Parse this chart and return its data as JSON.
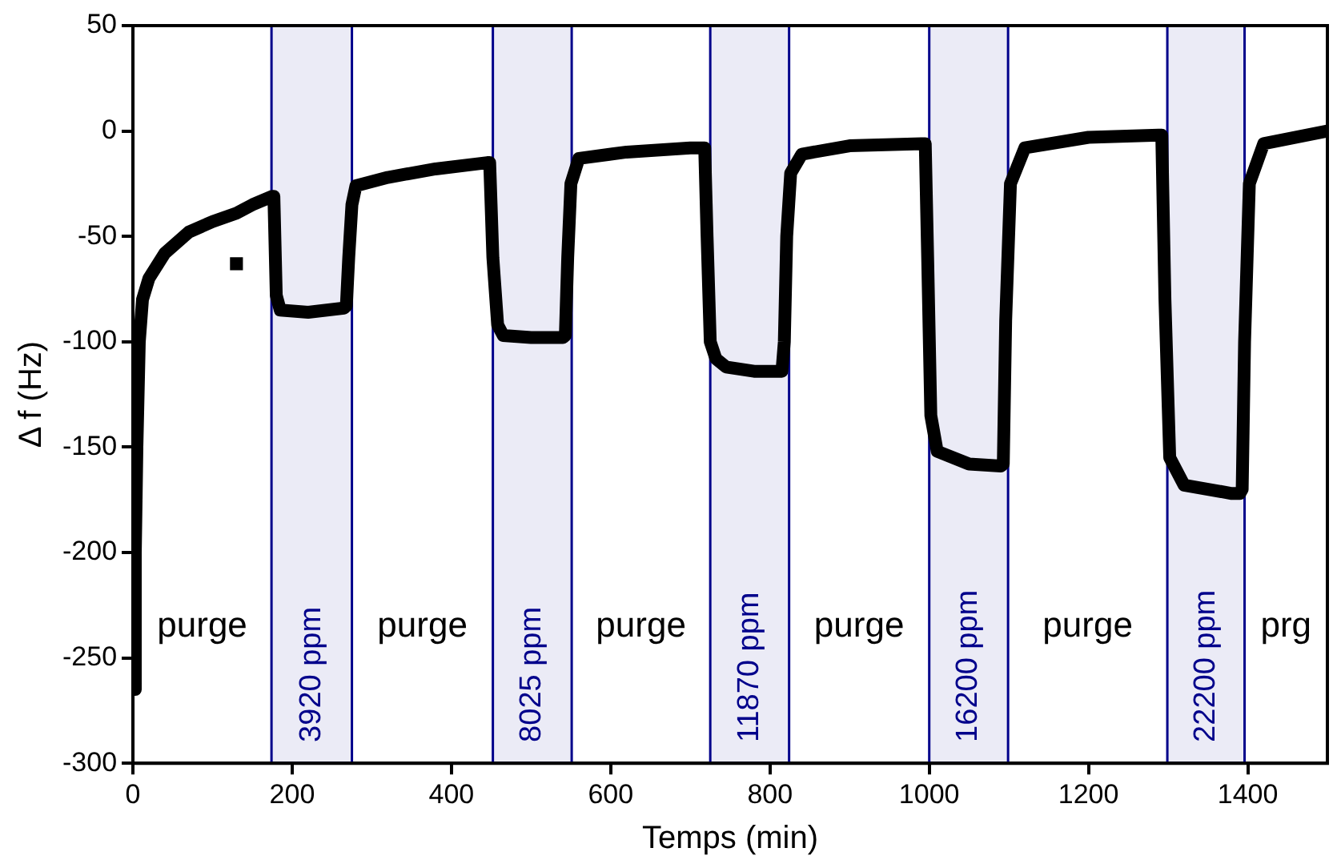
{
  "chart_data": {
    "type": "line",
    "xlabel": "Temps (min)",
    "ylabel": "Δ f (Hz)",
    "xlim": [
      0,
      1500
    ],
    "xticks": [
      0,
      200,
      400,
      600,
      800,
      1000,
      1200,
      1400
    ],
    "ylim": [
      -300,
      50
    ],
    "yticks": [
      -300,
      -250,
      -200,
      -150,
      -100,
      -50,
      0,
      50
    ],
    "grid": false,
    "legend": false,
    "series": [
      {
        "type": "line",
        "color": "#000000",
        "x": [
          2,
          3,
          5,
          8,
          12,
          20,
          40,
          70,
          100,
          130,
          150,
          175,
          177,
          180,
          185,
          220,
          265,
          268,
          271,
          275,
          280,
          320,
          380,
          445,
          448,
          452,
          458,
          465,
          500,
          540,
          543,
          546,
          550,
          560,
          620,
          700,
          718,
          721,
          725,
          732,
          745,
          780,
          815,
          818,
          821,
          826,
          840,
          900,
          990,
          995,
          998,
          1002,
          1010,
          1050,
          1090,
          1093,
          1096,
          1102,
          1120,
          1200,
          1288,
          1292,
          1296,
          1302,
          1320,
          1380,
          1390,
          1393,
          1396,
          1402,
          1420,
          1500
        ],
        "values": [
          -265,
          -200,
          -150,
          -100,
          -80,
          -70,
          -58,
          -48,
          -43,
          -39,
          -35,
          -31,
          -31,
          -78,
          -85,
          -86,
          -84,
          -83,
          -60,
          -35,
          -26,
          -22,
          -18,
          -15,
          -15,
          -60,
          -92,
          -97,
          -98,
          -98,
          -97,
          -60,
          -25,
          -13,
          -10,
          -8,
          -8,
          -50,
          -100,
          -108,
          -112,
          -114,
          -114,
          -100,
          -50,
          -20,
          -11,
          -7,
          -6,
          -6,
          -60,
          -135,
          -152,
          -158,
          -159,
          -158,
          -90,
          -25,
          -8,
          -3,
          -2,
          -2,
          -80,
          -155,
          -168,
          -172,
          -172,
          -170,
          -100,
          -25,
          -6,
          0
        ]
      },
      {
        "type": "scatter",
        "color": "#000000",
        "marker": "square",
        "x": [
          130
        ],
        "values": [
          -63
        ]
      }
    ],
    "bands": [
      {
        "axis": "x",
        "from": 174,
        "to": 275,
        "label": "3920 ppm",
        "color": "#00008b"
      },
      {
        "axis": "x",
        "from": 452,
        "to": 551,
        "label": "8025 ppm",
        "color": "#00008b"
      },
      {
        "axis": "x",
        "from": 725,
        "to": 824,
        "label": "11870 ppm",
        "color": "#00008b"
      },
      {
        "axis": "x",
        "from": 1000,
        "to": 1099,
        "label": "16200 ppm",
        "color": "#00008b"
      },
      {
        "axis": "x",
        "from": 1299,
        "to": 1396,
        "label": "22200 ppm",
        "color": "#00008b"
      }
    ],
    "annotations": [
      "purge",
      "purge",
      "purge",
      "purge",
      "purge",
      "prg"
    ]
  }
}
